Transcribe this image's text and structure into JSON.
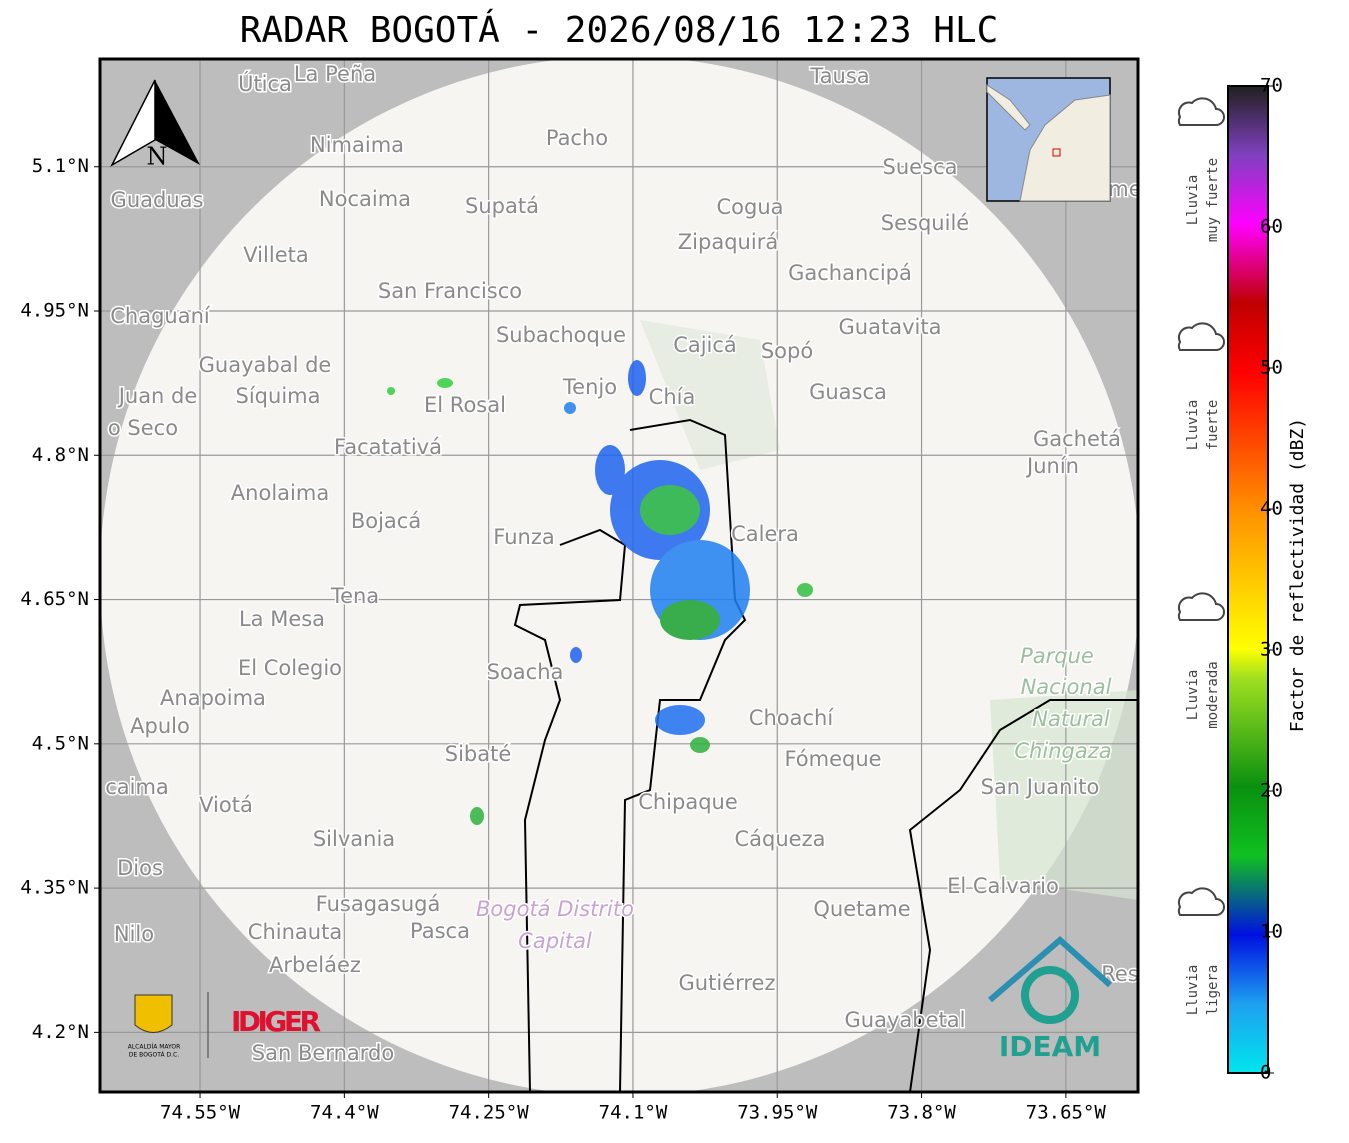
{
  "title": "RADAR BOGOTÁ - 2026/08/16 12:23 HLC",
  "map": {
    "xlim": [
      -74.654,
      -73.575
    ],
    "ylim": [
      4.138,
      5.212
    ],
    "xticks": [
      {
        "value": -74.55,
        "label": "74.55°W"
      },
      {
        "value": -74.4,
        "label": "74.4°W"
      },
      {
        "value": -74.25,
        "label": "74.25°W"
      },
      {
        "value": -74.1,
        "label": "74.1°W"
      },
      {
        "value": -73.95,
        "label": "73.95°W"
      },
      {
        "value": -73.8,
        "label": "73.8°W"
      },
      {
        "value": -73.65,
        "label": "73.65°W"
      }
    ],
    "yticks": [
      {
        "value": 5.1,
        "label": "5.1°N"
      },
      {
        "value": 4.95,
        "label": "4.95°N"
      },
      {
        "value": 4.8,
        "label": "4.8°N"
      },
      {
        "value": 4.65,
        "label": "4.65°N"
      },
      {
        "value": 4.5,
        "label": "4.5°N"
      },
      {
        "value": 4.35,
        "label": "4.35°N"
      },
      {
        "value": 4.2,
        "label": "4.2°N"
      }
    ],
    "places": [
      "Útica",
      "La Peña",
      "Tausa",
      "Pacho",
      "Nimaima",
      "Suesca",
      "Guaduas",
      "Nocaima",
      "Supatá",
      "Cogua",
      "Sesquilé",
      "Zipaquirá",
      "Villeta",
      "Gachancipá",
      "San Francisco",
      "Chaguaní",
      "Guatavita",
      "Subachoque",
      "Cajicá",
      "Sopó",
      "Guayabal de",
      "Síquima",
      "Juan de",
      "o Seco",
      "Tenjo",
      "Chía",
      "Guasca",
      "El Rosal",
      "Facatativá",
      "Gachetá",
      "Junín",
      "Anolaima",
      "Bojacá",
      "Funza",
      "Calera",
      "Tena",
      "La Mesa",
      "El Colegio",
      "Soacha",
      "Anapoima",
      "Apulo",
      "Choachí",
      "Sibaté",
      "Fómeque",
      "San Juanito",
      "caima",
      "Viotá",
      "Chipaque",
      "Silvania",
      "Cáqueza",
      "Dios",
      "El Calvario",
      "Fusagasugá",
      "Quetame",
      "Nilo",
      "Chinauta",
      "Pasca",
      "Arbeláez",
      "Res",
      "Gutiérrez",
      "Guayabetal",
      "San Bernardo",
      "me"
    ],
    "park": [
      "Parque",
      "Nacional",
      "Natural",
      "Chingaza"
    ],
    "district": [
      "Bogotá Distrito",
      "Capital"
    ],
    "north": "N"
  },
  "colorbar": {
    "label": "Factor de reflectividad (dBZ)",
    "clim": [
      0,
      70
    ],
    "ticks": [
      0,
      10,
      20,
      30,
      40,
      50,
      60,
      70
    ]
  },
  "rain_levels": [
    [
      "Lluvia",
      "muy fuerte"
    ],
    [
      "Lluvia",
      "fuerte"
    ],
    [
      "Lluvia",
      "moderada"
    ],
    [
      "Lluvia",
      "ligera"
    ]
  ],
  "logos": {
    "alcaldia": [
      "ALCALDÍA MAYOR",
      "DE BOGOTÁ D.C."
    ],
    "idiger": "IDIGER",
    "ideam": "IDEAM"
  }
}
